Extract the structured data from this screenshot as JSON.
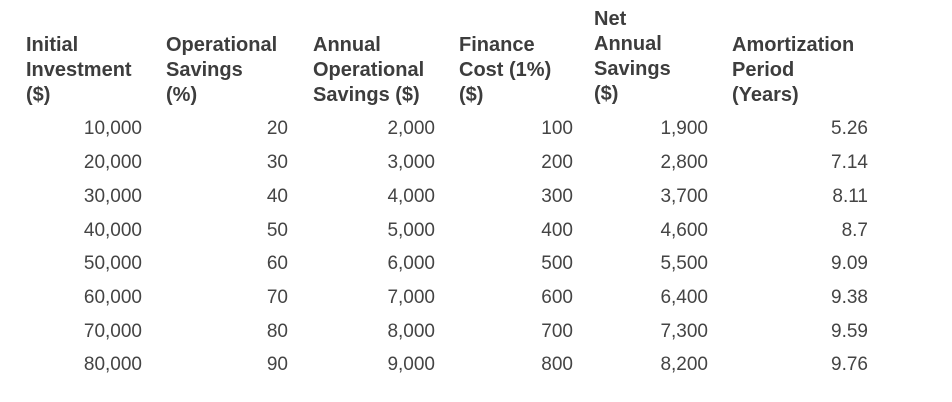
{
  "headers": [
    [
      "Initial",
      "Investment",
      "($)"
    ],
    [
      "Operational",
      "Savings",
      "(%)"
    ],
    [
      "Annual",
      "Operational",
      "Savings ($)"
    ],
    [
      "Finance",
      "Cost (1%)",
      "($)"
    ],
    [
      "Net",
      "Annual",
      "Savings",
      "($)"
    ],
    [
      "Amortization",
      "Period",
      "(Years)"
    ]
  ],
  "rows": [
    [
      "10,000",
      "20",
      "2,000",
      "100",
      "1,900",
      "5.26"
    ],
    [
      "20,000",
      "30",
      "3,000",
      "200",
      "2,800",
      "7.14"
    ],
    [
      "30,000",
      "40",
      "4,000",
      "300",
      "3,700",
      "8.11"
    ],
    [
      "40,000",
      "50",
      "5,000",
      "400",
      "4,600",
      "8.7"
    ],
    [
      "50,000",
      "60",
      "6,000",
      "500",
      "5,500",
      "9.09"
    ],
    [
      "60,000",
      "70",
      "7,000",
      "600",
      "6,400",
      "9.38"
    ],
    [
      "70,000",
      "80",
      "8,000",
      "700",
      "7,300",
      "9.59"
    ],
    [
      "80,000",
      "90",
      "9,000",
      "800",
      "8,200",
      "9.76"
    ]
  ]
}
